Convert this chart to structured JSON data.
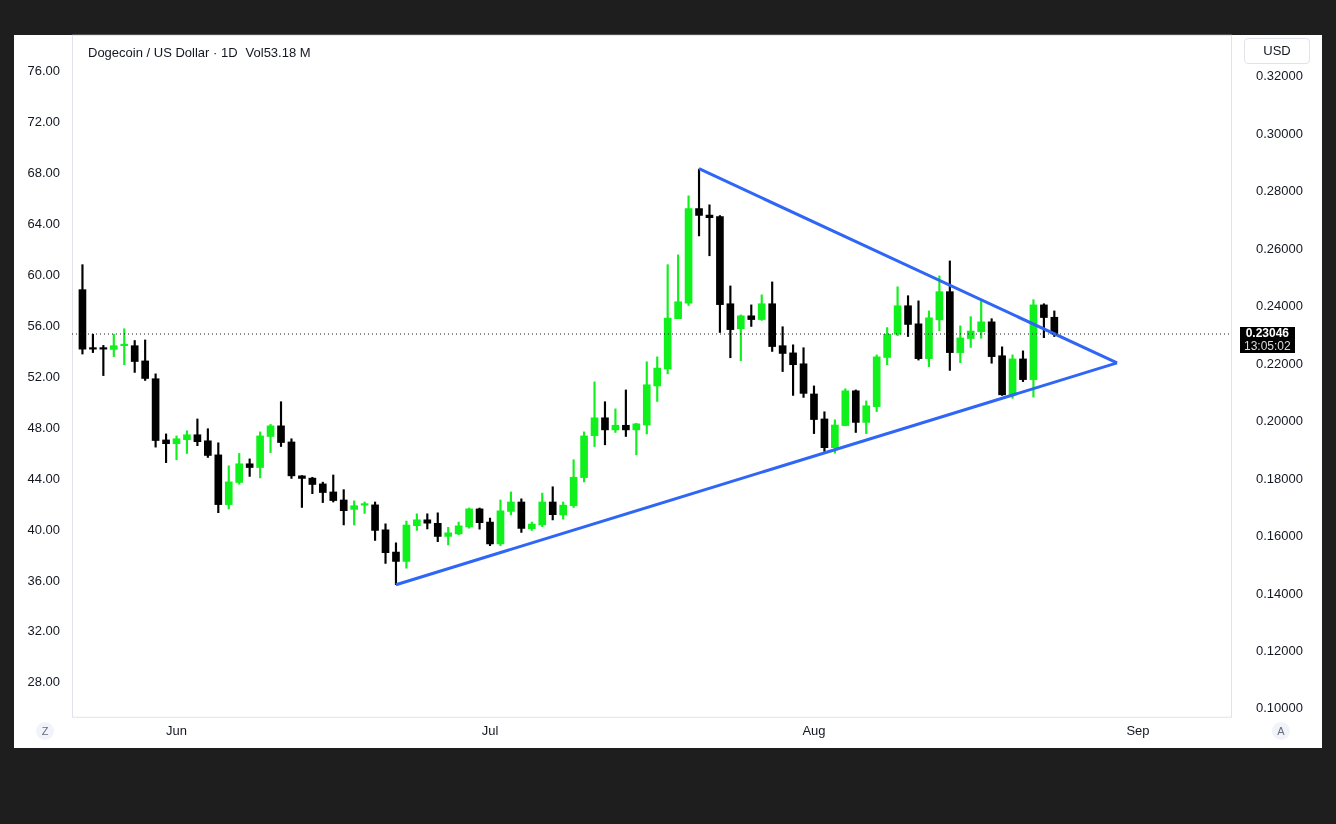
{
  "chart_data": {
    "type": "candlestick",
    "title": "Dogecoin / US Dollar · 1D",
    "annotations": [
      "Vol53.18 M",
      "13:05:02",
      "USD",
      "Z",
      "A"
    ],
    "xlim": [
      "--05-22",
      "--09-10"
    ],
    "xticks": [
      {
        "value": "--06-01",
        "label": "Jun"
      },
      {
        "value": "--07-01",
        "label": "Jul"
      },
      {
        "value": "--08-01",
        "label": "Aug"
      },
      {
        "value": "--09-01",
        "label": "Sep"
      }
    ],
    "ylim": [
      25.25,
      78.9
    ],
    "yticks": [
      {
        "value": 28,
        "label": "28.00"
      },
      {
        "value": 32,
        "label": "32.00"
      },
      {
        "value": 36,
        "label": "36.00"
      },
      {
        "value": 40,
        "label": "40.00"
      },
      {
        "value": 44,
        "label": "44.00"
      },
      {
        "value": 48,
        "label": "48.00"
      },
      {
        "value": 52,
        "label": "52.00"
      },
      {
        "value": 56,
        "label": "56.00"
      },
      {
        "value": 60,
        "label": "60.00"
      },
      {
        "value": 64,
        "label": "64.00"
      },
      {
        "value": 68,
        "label": "68.00"
      },
      {
        "value": 72,
        "label": "72.00"
      },
      {
        "value": 76,
        "label": "76.00"
      }
    ],
    "y2lim": [
      0.0969,
      0.3346
    ],
    "y2ticks": [
      {
        "value": 0.1,
        "label": "0.10000"
      },
      {
        "value": 0.12,
        "label": "0.12000"
      },
      {
        "value": 0.14,
        "label": "0.14000"
      },
      {
        "value": 0.16,
        "label": "0.16000"
      },
      {
        "value": 0.18,
        "label": "0.18000"
      },
      {
        "value": 0.2,
        "label": "0.20000"
      },
      {
        "value": 0.22,
        "label": "0.22000"
      },
      {
        "value": 0.24,
        "label": "0.24000"
      },
      {
        "value": 0.26,
        "label": "0.26000"
      },
      {
        "value": 0.28,
        "label": "0.28000"
      },
      {
        "value": 0.3,
        "label": "0.30000"
      },
      {
        "value": 0.32,
        "label": "0.32000"
      }
    ],
    "grid": false,
    "ref_lines": [
      {
        "axis": "y2",
        "value": 0.23046,
        "label": "0.23046",
        "line_style": "dotted",
        "color": "#131722"
      }
    ],
    "series": [
      {
        "type": "candlestick",
        "axis": "y2",
        "x": [
          "--05-23",
          "--05-24",
          "--05-25",
          "--05-26",
          "--05-27",
          "--05-28",
          "--05-29",
          "--05-30",
          "--05-31",
          "--06-01",
          "--06-02",
          "--06-03",
          "--06-04",
          "--06-05",
          "--06-06",
          "--06-07",
          "--06-08",
          "--06-09",
          "--06-10",
          "--06-11",
          "--06-12",
          "--06-13",
          "--06-14",
          "--06-15",
          "--06-16",
          "--06-17",
          "--06-18",
          "--06-19",
          "--06-20",
          "--06-21",
          "--06-22",
          "--06-23",
          "--06-24",
          "--06-25",
          "--06-26",
          "--06-27",
          "--06-28",
          "--06-29",
          "--06-30",
          "--07-01",
          "--07-02",
          "--07-03",
          "--07-04",
          "--07-05",
          "--07-06",
          "--07-07",
          "--07-08",
          "--07-09",
          "--07-10",
          "--07-11",
          "--07-12",
          "--07-13",
          "--07-14",
          "--07-15",
          "--07-16",
          "--07-17",
          "--07-18",
          "--07-19",
          "--07-20",
          "--07-21",
          "--07-22",
          "--07-23",
          "--07-24",
          "--07-25",
          "--07-26",
          "--07-27",
          "--07-28",
          "--07-29",
          "--07-30",
          "--07-31",
          "--08-01",
          "--08-02",
          "--08-03",
          "--08-04",
          "--08-05",
          "--08-06",
          "--08-07",
          "--08-08",
          "--08-09",
          "--08-10",
          "--08-11",
          "--08-12",
          "--08-13",
          "--08-14",
          "--08-15",
          "--08-16",
          "--08-17",
          "--08-18",
          "--08-19",
          "--08-20",
          "--08-21",
          "--08-22",
          "--08-23",
          "--08-24"
        ],
        "ohlc": [
          [
            0.2459,
            0.2546,
            0.2235,
            0.2252
          ],
          [
            0.2252,
            0.2304,
            0.224,
            0.2252
          ],
          [
            0.2252,
            0.2265,
            0.216,
            0.2252
          ],
          [
            0.2251,
            0.2304,
            0.2226,
            0.2264
          ],
          [
            0.2264,
            0.2323,
            0.2198,
            0.2265
          ],
          [
            0.2264,
            0.2282,
            0.2171,
            0.2209
          ],
          [
            0.2211,
            0.2284,
            0.2143,
            0.215
          ],
          [
            0.2149,
            0.2166,
            0.1911,
            0.1934
          ],
          [
            0.1936,
            0.1957,
            0.1857,
            0.1923
          ],
          [
            0.1923,
            0.195,
            0.1867,
            0.194
          ],
          [
            0.1937,
            0.1968,
            0.1889,
            0.1954
          ],
          [
            0.1954,
            0.2009,
            0.1916,
            0.193
          ],
          [
            0.1933,
            0.1975,
            0.1875,
            0.1882
          ],
          [
            0.1884,
            0.1926,
            0.1683,
            0.1711
          ],
          [
            0.1711,
            0.1846,
            0.1696,
            0.179
          ],
          [
            0.1788,
            0.1889,
            0.1782,
            0.1853
          ],
          [
            0.1853,
            0.187,
            0.1809,
            0.184
          ],
          [
            0.184,
            0.1964,
            0.1804,
            0.195
          ],
          [
            0.1948,
            0.199,
            0.1892,
            0.1985
          ],
          [
            0.1985,
            0.2069,
            0.1913,
            0.1927
          ],
          [
            0.1929,
            0.194,
            0.1802,
            0.1811
          ],
          [
            0.1811,
            0.1812,
            0.1701,
            0.1802
          ],
          [
            0.1803,
            0.1806,
            0.1749,
            0.1781
          ],
          [
            0.1783,
            0.1789,
            0.1718,
            0.1753
          ],
          [
            0.1755,
            0.1814,
            0.172,
            0.1725
          ],
          [
            0.1727,
            0.1763,
            0.164,
            0.169
          ],
          [
            0.1694,
            0.1724,
            0.164,
            0.1707
          ],
          [
            0.1709,
            0.172,
            0.168,
            0.1711
          ],
          [
            0.171,
            0.172,
            0.1586,
            0.1621
          ],
          [
            0.1623,
            0.1644,
            0.1506,
            0.1544
          ],
          [
            0.1546,
            0.1578,
            0.1432,
            0.1513
          ],
          [
            0.1513,
            0.1654,
            0.149,
            0.164
          ],
          [
            0.1638,
            0.1679,
            0.1621,
            0.1658
          ],
          [
            0.1658,
            0.1679,
            0.1626,
            0.1646
          ],
          [
            0.1646,
            0.1682,
            0.1582,
            0.16
          ],
          [
            0.16,
            0.1632,
            0.1571,
            0.1613
          ],
          [
            0.1609,
            0.165,
            0.1606,
            0.1637
          ],
          [
            0.1633,
            0.1699,
            0.1629,
            0.1696
          ],
          [
            0.1696,
            0.1699,
            0.1625,
            0.1648
          ],
          [
            0.165,
            0.1664,
            0.1568,
            0.1574
          ],
          [
            0.1574,
            0.1727,
            0.1568,
            0.1689
          ],
          [
            0.1687,
            0.1755,
            0.1675,
            0.172
          ],
          [
            0.172,
            0.1731,
            0.1614,
            0.1628
          ],
          [
            0.1627,
            0.165,
            0.1621,
            0.1643
          ],
          [
            0.164,
            0.1751,
            0.1634,
            0.172
          ],
          [
            0.172,
            0.1773,
            0.1658,
            0.1676
          ],
          [
            0.1675,
            0.172,
            0.166,
            0.1709
          ],
          [
            0.1707,
            0.1867,
            0.1701,
            0.1806
          ],
          [
            0.1805,
            0.1964,
            0.179,
            0.195
          ],
          [
            0.1951,
            0.2138,
            0.1913,
            0.2013
          ],
          [
            0.2013,
            0.2069,
            0.1919,
            0.1971
          ],
          [
            0.1971,
            0.2044,
            0.1962,
            0.1987
          ],
          [
            0.1987,
            0.211,
            0.1948,
            0.1971
          ],
          [
            0.1971,
            0.1994,
            0.1884,
            0.1992
          ],
          [
            0.1988,
            0.2208,
            0.1957,
            0.2128
          ],
          [
            0.2124,
            0.2225,
            0.207,
            0.2186
          ],
          [
            0.2183,
            0.2546,
            0.2166,
            0.236
          ],
          [
            0.2358,
            0.258,
            0.2358,
            0.2417
          ],
          [
            0.2412,
            0.2786,
            0.2404,
            0.2741
          ],
          [
            0.2741,
            0.2879,
            0.2646,
            0.2717
          ],
          [
            0.2719,
            0.2754,
            0.2577,
            0.271
          ],
          [
            0.2713,
            0.2717,
            0.231,
            0.2407
          ],
          [
            0.241,
            0.2472,
            0.2222,
            0.232
          ],
          [
            0.2323,
            0.2371,
            0.2212,
            0.2368
          ],
          [
            0.2368,
            0.2406,
            0.2331,
            0.2355
          ],
          [
            0.2355,
            0.2441,
            0.2352,
            0.241
          ],
          [
            0.241,
            0.2486,
            0.2244,
            0.2261
          ],
          [
            0.2264,
            0.233,
            0.2174,
            0.2237
          ],
          [
            0.2239,
            0.2267,
            0.2091,
            0.2198
          ],
          [
            0.2201,
            0.2257,
            0.2084,
            0.2098
          ],
          [
            0.2096,
            0.2124,
            0.1958,
            0.2007
          ],
          [
            0.2009,
            0.2034,
            0.1896,
            0.1909
          ],
          [
            0.1909,
            0.2006,
            0.189,
            0.1988
          ],
          [
            0.1986,
            0.2114,
            0.1985,
            0.2107
          ],
          [
            0.2107,
            0.211,
            0.1962,
            0.1997
          ],
          [
            0.1997,
            0.2072,
            0.1958,
            0.2055
          ],
          [
            0.2052,
            0.2232,
            0.2035,
            0.2225
          ],
          [
            0.2223,
            0.2327,
            0.2198,
            0.2304
          ],
          [
            0.2304,
            0.2469,
            0.2299,
            0.2403
          ],
          [
            0.2403,
            0.2438,
            0.2296,
            0.2338
          ],
          [
            0.234,
            0.242,
            0.2214,
            0.2219
          ],
          [
            0.2219,
            0.2385,
            0.2191,
            0.2361
          ],
          [
            0.2354,
            0.2507,
            0.2316,
            0.2452
          ],
          [
            0.2452,
            0.2559,
            0.2178,
            0.224
          ],
          [
            0.224,
            0.2333,
            0.2205,
            0.2291
          ],
          [
            0.2289,
            0.2365,
            0.2258,
            0.2315
          ],
          [
            0.2313,
            0.2424,
            0.229,
            0.2347
          ],
          [
            0.2347,
            0.2358,
            0.2203,
            0.2226
          ],
          [
            0.2229,
            0.226,
            0.2091,
            0.2093
          ],
          [
            0.2093,
            0.2232,
            0.2081,
            0.2218
          ],
          [
            0.2218,
            0.2246,
            0.2139,
            0.2146
          ],
          [
            0.2146,
            0.2424,
            0.2085,
            0.2406
          ],
          [
            0.2406,
            0.241,
            0.2292,
            0.2362
          ],
          [
            0.2363,
            0.2385,
            0.2296,
            0.2305
          ]
        ],
        "colors": [
          "#000000",
          "#000000",
          "#000000",
          "#10f01c",
          "#10f01c",
          "#000000",
          "#000000",
          "#000000",
          "#000000",
          "#10f01c",
          "#10f01c",
          "#000000",
          "#000000",
          "#000000",
          "#10f01c",
          "#10f01c",
          "#000000",
          "#10f01c",
          "#10f01c",
          "#000000",
          "#000000",
          "#000000",
          "#000000",
          "#000000",
          "#000000",
          "#000000",
          "#10f01c",
          "#10f01c",
          "#000000",
          "#000000",
          "#000000",
          "#10f01c",
          "#10f01c",
          "#000000",
          "#000000",
          "#10f01c",
          "#10f01c",
          "#10f01c",
          "#000000",
          "#000000",
          "#10f01c",
          "#10f01c",
          "#000000",
          "#10f01c",
          "#10f01c",
          "#000000",
          "#10f01c",
          "#10f01c",
          "#10f01c",
          "#10f01c",
          "#000000",
          "#10f01c",
          "#000000",
          "#10f01c",
          "#10f01c",
          "#10f01c",
          "#10f01c",
          "#10f01c",
          "#10f01c",
          "#000000",
          "#000000",
          "#000000",
          "#000000",
          "#10f01c",
          "#000000",
          "#10f01c",
          "#000000",
          "#000000",
          "#000000",
          "#000000",
          "#000000",
          "#000000",
          "#10f01c",
          "#10f01c",
          "#000000",
          "#10f01c",
          "#10f01c",
          "#10f01c",
          "#10f01c",
          "#000000",
          "#000000",
          "#10f01c",
          "#10f01c",
          "#000000",
          "#10f01c",
          "#10f01c",
          "#10f01c",
          "#000000",
          "#000000",
          "#10f01c",
          "#000000",
          "#10f01c",
          "#000000",
          "#000000"
        ]
      },
      {
        "type": "line",
        "axis": "y2",
        "x": [
          "--06-22",
          "--08-30"
        ],
        "values": [
          0.1432,
          0.2204
        ],
        "color": "#2f66f5"
      },
      {
        "type": "line",
        "axis": "y2",
        "x": [
          "--07-21",
          "--08-30"
        ],
        "values": [
          0.288,
          0.2204
        ],
        "color": "#2f66f5"
      }
    ]
  }
}
